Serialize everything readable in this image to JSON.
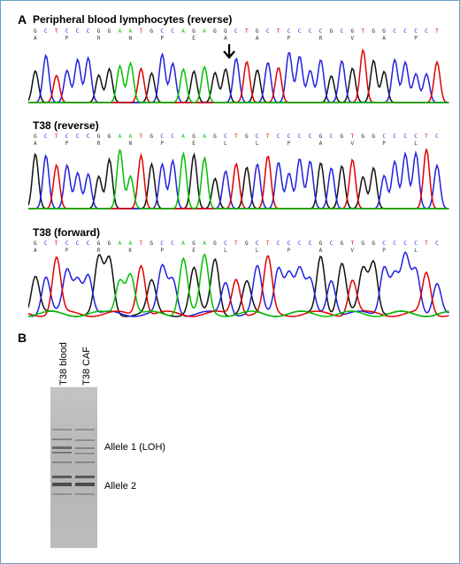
{
  "panel_a": {
    "letter": "A",
    "traces": [
      {
        "title": "Peripheral blood lymphocytes (reverse)",
        "bases": "GCTCCCGGAATGCCAGAGGCTGCTCCCCGCGTGGCCCCT",
        "aa": [
          "A",
          "",
          "",
          "P",
          "",
          "",
          "R",
          "",
          "",
          "N",
          "",
          "",
          "P",
          "",
          "",
          "E",
          "",
          "",
          "A",
          "",
          "",
          "A",
          "",
          "",
          "P",
          "",
          "",
          "R",
          "",
          "",
          "V",
          "",
          "",
          "A",
          "",
          "",
          "P",
          "",
          ""
        ],
        "peaks": [
          "black",
          "blue",
          "red",
          "blue",
          "blue",
          "blue",
          "black",
          "black",
          "green",
          "green",
          "red",
          "black",
          "blue",
          "blue",
          "green",
          "black",
          "green",
          "black",
          "black",
          "blue",
          "red",
          "black",
          "blue",
          "red",
          "blue",
          "blue",
          "blue",
          "blue",
          "black",
          "blue",
          "black",
          "red",
          "black",
          "black",
          "blue",
          "blue",
          "blue",
          "blue",
          "red"
        ],
        "arrow_index": 18
      },
      {
        "title": "T38 (reverse)",
        "bases": "GCTCCCGGAATGCCAGAGCTGCTCCCCGCGTGGCCCCTC",
        "aa": [
          "A",
          "",
          "",
          "P",
          "",
          "",
          "R",
          "",
          "",
          "N",
          "",
          "",
          "P",
          "",
          "",
          "E",
          "",
          "",
          "L",
          "",
          "",
          "L",
          "",
          "",
          "P",
          "",
          "",
          "A",
          "",
          "",
          "V",
          "",
          "",
          "P",
          "",
          "",
          "L",
          "",
          ""
        ],
        "peaks": [
          "black",
          "blue",
          "red",
          "blue",
          "blue",
          "blue",
          "black",
          "black",
          "green",
          "green",
          "red",
          "black",
          "blue",
          "blue",
          "green",
          "black",
          "green",
          "black",
          "blue",
          "red",
          "black",
          "blue",
          "red",
          "blue",
          "blue",
          "blue",
          "blue",
          "black",
          "blue",
          "black",
          "red",
          "black",
          "black",
          "blue",
          "blue",
          "blue",
          "blue",
          "red",
          "blue"
        ],
        "arrow_index": -1
      },
      {
        "title": "T38 (forward)",
        "bases": "GCTCCCGGAATGCCAGAGCTGCTCCCCGCGTGGCCCCTC",
        "aa": [
          "A",
          "",
          "",
          "P",
          "",
          "",
          "R",
          "",
          "",
          "K",
          "",
          "",
          "P",
          "",
          "",
          "E",
          "",
          "",
          "L",
          "",
          "",
          "L",
          "",
          "",
          "P",
          "",
          "",
          "A",
          "",
          "",
          "V",
          "",
          "",
          "P",
          "",
          "",
          "L",
          "",
          ""
        ],
        "peaks": [
          "black",
          "blue",
          "red",
          "blue",
          "blue",
          "blue",
          "black",
          "black",
          "green",
          "green",
          "red",
          "black",
          "blue",
          "blue",
          "green",
          "black",
          "green",
          "black",
          "blue",
          "red",
          "black",
          "blue",
          "red",
          "blue",
          "blue",
          "blue",
          "blue",
          "black",
          "blue",
          "black",
          "red",
          "black",
          "black",
          "blue",
          "blue",
          "blue",
          "blue",
          "red",
          "blue"
        ],
        "arrow_index": -1
      }
    ]
  },
  "panel_b": {
    "letter": "B",
    "lanes": [
      "T38 blood",
      "T38 CAF"
    ],
    "allele_labels": [
      "Allele 1 (LOH)",
      "Allele 2"
    ]
  },
  "colors": {
    "A": "#00c000",
    "C": "#2020e0",
    "G": "#111111",
    "T": "#e00000",
    "frame": "#6aa0c8"
  }
}
